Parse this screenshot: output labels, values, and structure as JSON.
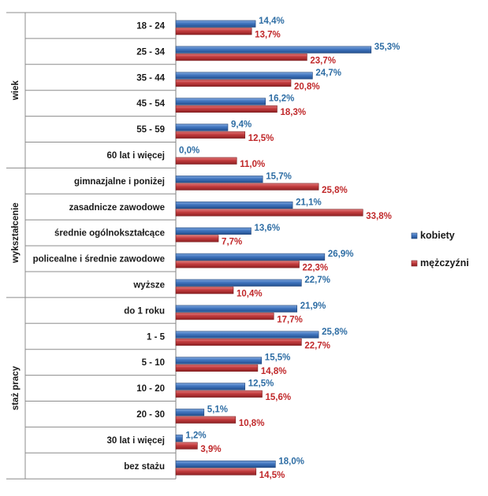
{
  "chart_data": {
    "type": "bar",
    "orientation": "horizontal",
    "title": "",
    "xlabel": "",
    "ylabel": "",
    "xlim": [
      0,
      36
    ],
    "grid": false,
    "legend_position": "right",
    "categories": [
      "18 - 24",
      "25 - 34",
      "35 - 44",
      "45 - 54",
      "55 - 59",
      "60 lat i więcej",
      "gimnazjalne i poniżej",
      "zasadnicze zawodowe",
      "średnie ogólnokształcące",
      "policealne i średnie zawodowe",
      "wyższe",
      "do 1 roku",
      "1 - 5",
      "5 - 10",
      "10 - 20",
      "20 - 30",
      "30 lat i więcej",
      "bez stażu"
    ],
    "groups": [
      {
        "label": "wiek",
        "start": 0,
        "count": 6
      },
      {
        "label": "wykształcenie",
        "start": 6,
        "count": 5
      },
      {
        "label": "staż pracy",
        "start": 11,
        "count": 7
      }
    ],
    "series": [
      {
        "name": "kobiety",
        "color": "#3a6fb8",
        "label_color": "#2e6da4",
        "values": [
          14.4,
          35.3,
          24.7,
          16.2,
          9.4,
          0.0,
          15.7,
          21.1,
          13.6,
          26.9,
          22.7,
          21.9,
          25.8,
          15.5,
          12.5,
          5.1,
          1.2,
          18.0
        ],
        "labels": [
          "14,4%",
          "35,3%",
          "24,7%",
          "16,2%",
          "9,4%",
          "0,0%",
          "15,7%",
          "21,1%",
          "13,6%",
          "26,9%",
          "22,7%",
          "21,9%",
          "25,8%",
          "15,5%",
          "12,5%",
          "5,1%",
          "1,2%",
          "18,0%"
        ]
      },
      {
        "name": "mężczyźni",
        "color": "#c0383a",
        "label_color": "#c0282a",
        "values": [
          13.7,
          23.7,
          20.8,
          18.3,
          12.5,
          11.0,
          25.8,
          33.8,
          7.7,
          22.3,
          10.4,
          17.7,
          22.7,
          14.8,
          15.6,
          10.8,
          3.9,
          14.5
        ],
        "labels": [
          "13,7%",
          "23,7%",
          "20,8%",
          "18,3%",
          "12,5%",
          "11,0%",
          "25,8%",
          "33,8%",
          "7,7%",
          "22,3%",
          "10,4%",
          "17,7%",
          "22,7%",
          "14,8%",
          "15,6%",
          "10,8%",
          "3,9%",
          "14,5%"
        ]
      }
    ]
  }
}
